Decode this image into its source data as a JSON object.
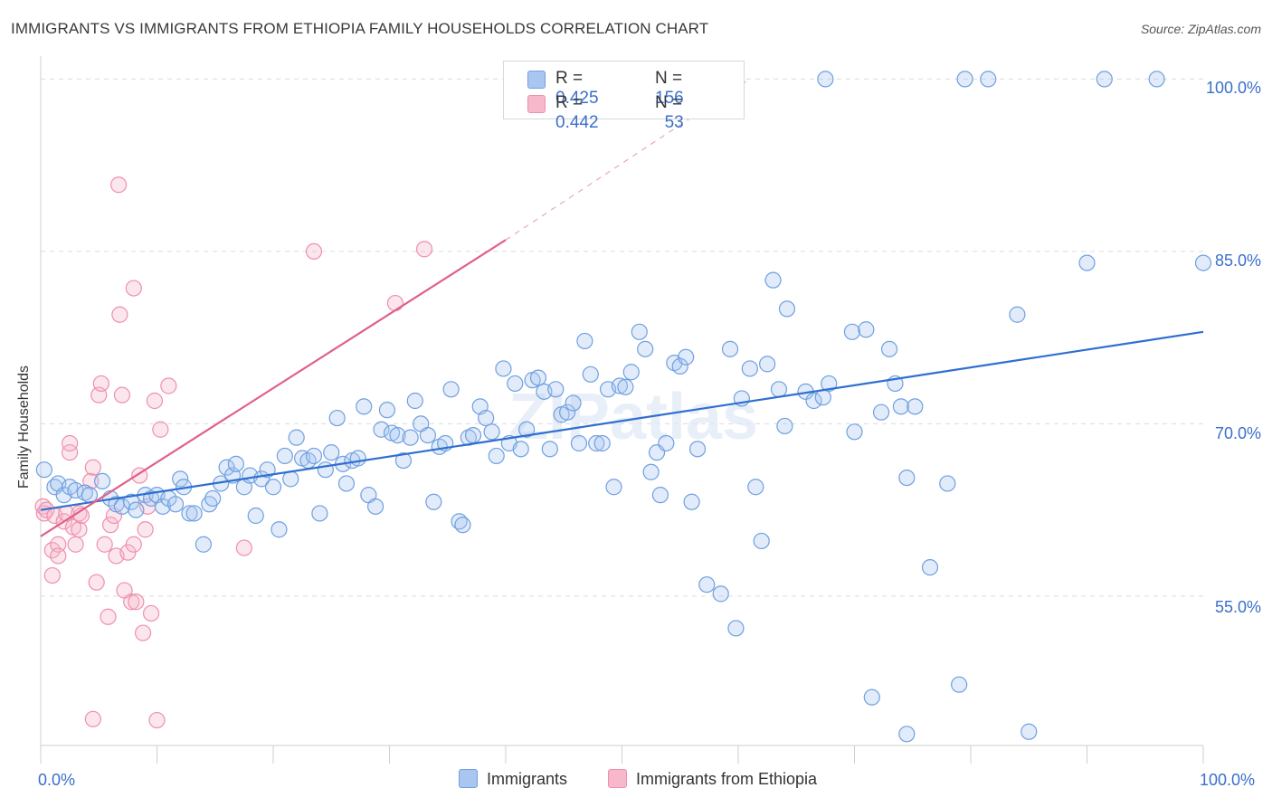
{
  "title": "IMMIGRANTS VS IMMIGRANTS FROM ETHIOPIA FAMILY HOUSEHOLDS CORRELATION CHART",
  "source": "Source: ZipAtlas.com",
  "watermark": "ZIPatlas",
  "legend": {
    "rows": [
      {
        "r_label": "R = ",
        "r_value": "0.425",
        "n_label": "N = ",
        "n_value": "156",
        "color": "#a9c6f0"
      },
      {
        "r_label": "R = ",
        "r_value": "0.442",
        "n_label": "N = ",
        "n_value": "53",
        "color": "#f7b8cb"
      }
    ]
  },
  "bottom_legend": [
    "Immigrants",
    "Immigrants from Ethiopia"
  ],
  "chart_data": {
    "type": "scatter",
    "title": "IMMIGRANTS VS IMMIGRANTS FROM ETHIOPIA FAMILY HOUSEHOLDS CORRELATION CHART",
    "xlabel": "",
    "ylabel": "Family Households",
    "xlim": [
      0,
      100
    ],
    "ylim": [
      42,
      102
    ],
    "x_tick_labels": [
      "0.0%",
      "100.0%"
    ],
    "y_ticks": [
      55,
      70,
      85,
      100
    ],
    "y_tick_labels": [
      "55.0%",
      "70.0%",
      "85.0%",
      "100.0%"
    ],
    "grid": true,
    "legend_placement": "top-center",
    "series": [
      {
        "name": "Immigrants",
        "color": "#6fa0e0",
        "fill": "#a9c6f0",
        "trend": {
          "x": [
            0,
            100
          ],
          "y": [
            62.5,
            78.0
          ]
        },
        "points": [
          [
            0.3,
            66
          ],
          [
            1.2,
            64.5
          ],
          [
            1.5,
            64.8
          ],
          [
            2,
            63.8
          ],
          [
            2.5,
            64.5
          ],
          [
            3,
            64.2
          ],
          [
            3.8,
            64
          ],
          [
            4.2,
            63.8
          ],
          [
            5.3,
            65
          ],
          [
            6,
            63.5
          ],
          [
            6.5,
            63
          ],
          [
            7,
            62.8
          ],
          [
            7.8,
            63.2
          ],
          [
            8.2,
            62.5
          ],
          [
            9,
            63.8
          ],
          [
            9.5,
            63.5
          ],
          [
            10,
            63.8
          ],
          [
            10.5,
            62.8
          ],
          [
            11,
            63.5
          ],
          [
            11.6,
            63
          ],
          [
            12,
            65.2
          ],
          [
            12.3,
            64.5
          ],
          [
            12.8,
            62.2
          ],
          [
            13.2,
            62.2
          ],
          [
            14,
            59.5
          ],
          [
            14.5,
            63
          ],
          [
            14.8,
            63.5
          ],
          [
            15.5,
            64.8
          ],
          [
            16,
            66.2
          ],
          [
            16.5,
            65.5
          ],
          [
            16.8,
            66.5
          ],
          [
            17.5,
            64.5
          ],
          [
            18,
            65.5
          ],
          [
            18.5,
            62
          ],
          [
            19,
            65.2
          ],
          [
            19.5,
            66
          ],
          [
            20,
            64.5
          ],
          [
            20.5,
            60.8
          ],
          [
            21,
            67.2
          ],
          [
            21.5,
            65.2
          ],
          [
            22,
            68.8
          ],
          [
            22.5,
            67
          ],
          [
            23,
            66.8
          ],
          [
            23.5,
            67.2
          ],
          [
            24,
            62.2
          ],
          [
            24.5,
            66
          ],
          [
            25,
            67.5
          ],
          [
            25.5,
            70.5
          ],
          [
            26,
            66.5
          ],
          [
            26.3,
            64.8
          ],
          [
            26.8,
            66.8
          ],
          [
            27.3,
            67
          ],
          [
            27.8,
            71.5
          ],
          [
            28.2,
            63.8
          ],
          [
            28.8,
            62.8
          ],
          [
            29.3,
            69.5
          ],
          [
            29.8,
            71.2
          ],
          [
            30.2,
            69.2
          ],
          [
            30.7,
            69
          ],
          [
            31.2,
            66.8
          ],
          [
            31.8,
            68.8
          ],
          [
            32.2,
            72
          ],
          [
            32.7,
            70
          ],
          [
            33.3,
            69
          ],
          [
            33.8,
            63.2
          ],
          [
            34.3,
            68
          ],
          [
            34.8,
            68.3
          ],
          [
            35.3,
            73
          ],
          [
            36,
            61.5
          ],
          [
            36.3,
            61.2
          ],
          [
            36.8,
            68.8
          ],
          [
            37.2,
            69
          ],
          [
            37.8,
            71.5
          ],
          [
            38.3,
            70.5
          ],
          [
            38.8,
            69.3
          ],
          [
            39.2,
            67.2
          ],
          [
            39.8,
            74.8
          ],
          [
            40.3,
            68.3
          ],
          [
            40.8,
            73.5
          ],
          [
            41.3,
            67.8
          ],
          [
            41.8,
            69.5
          ],
          [
            42.3,
            73.8
          ],
          [
            42.8,
            74
          ],
          [
            43.3,
            72.8
          ],
          [
            43.8,
            67.8
          ],
          [
            44.3,
            73
          ],
          [
            44.8,
            70.8
          ],
          [
            45.3,
            71
          ],
          [
            45.8,
            71.8
          ],
          [
            46.3,
            68.3
          ],
          [
            46.8,
            77.2
          ],
          [
            47.3,
            74.3
          ],
          [
            47.8,
            68.3
          ],
          [
            48.3,
            68.3
          ],
          [
            48.8,
            73
          ],
          [
            49.3,
            64.5
          ],
          [
            49.8,
            73.3
          ],
          [
            50.3,
            73.2
          ],
          [
            50.8,
            74.5
          ],
          [
            51.5,
            78
          ],
          [
            52,
            76.5
          ],
          [
            52.5,
            65.8
          ],
          [
            53,
            67.5
          ],
          [
            53.3,
            63.8
          ],
          [
            53.8,
            68.3
          ],
          [
            54.5,
            75.3
          ],
          [
            55,
            75
          ],
          [
            55.5,
            75.8
          ],
          [
            56,
            63.2
          ],
          [
            56.5,
            67.8
          ],
          [
            57.3,
            56
          ],
          [
            58.5,
            55.2
          ],
          [
            59.3,
            76.5
          ],
          [
            59.8,
            52.2
          ],
          [
            60.3,
            72.2
          ],
          [
            61,
            74.8
          ],
          [
            61.5,
            64.5
          ],
          [
            62,
            59.8
          ],
          [
            62.5,
            75.2
          ],
          [
            63,
            82.5
          ],
          [
            63.5,
            73
          ],
          [
            64,
            69.8
          ],
          [
            64.2,
            80
          ],
          [
            65.8,
            72.8
          ],
          [
            66.5,
            72
          ],
          [
            67.3,
            72.3
          ],
          [
            67.8,
            73.5
          ],
          [
            69.8,
            78
          ],
          [
            70,
            69.3
          ],
          [
            71,
            78.2
          ],
          [
            71.5,
            46.2
          ],
          [
            72.3,
            71
          ],
          [
            73,
            76.5
          ],
          [
            73.5,
            73.5
          ],
          [
            74,
            71.5
          ],
          [
            74.5,
            43
          ],
          [
            74.5,
            65.3
          ],
          [
            75.2,
            71.5
          ],
          [
            76.5,
            57.5
          ],
          [
            78,
            64.8
          ],
          [
            79,
            47.3
          ],
          [
            84,
            79.5
          ],
          [
            85,
            43.2
          ],
          [
            90,
            84
          ],
          [
            67.5,
            100
          ],
          [
            79.5,
            100
          ],
          [
            81.5,
            100
          ],
          [
            91.5,
            100
          ],
          [
            96,
            100
          ],
          [
            100,
            84
          ]
        ]
      },
      {
        "name": "Immigrants from Ethiopia",
        "color": "#ef8fad",
        "fill": "#f7b8cb",
        "trend": {
          "x": [
            0,
            40
          ],
          "y": [
            60.2,
            86
          ],
          "dashed_to": [
            61,
            100
          ]
        },
        "points": [
          [
            0.2,
            62.8
          ],
          [
            0.3,
            62.2
          ],
          [
            0.5,
            62.5
          ],
          [
            1,
            56.8
          ],
          [
            1,
            59
          ],
          [
            1.2,
            62
          ],
          [
            1.5,
            59.5
          ],
          [
            1.5,
            58.5
          ],
          [
            2,
            61.5
          ],
          [
            2.2,
            62.2
          ],
          [
            2.5,
            67.5
          ],
          [
            2.5,
            68.3
          ],
          [
            2.8,
            61
          ],
          [
            3,
            59.5
          ],
          [
            3.3,
            60.8
          ],
          [
            3.3,
            62.2
          ],
          [
            3.5,
            62
          ],
          [
            4.3,
            65
          ],
          [
            4.5,
            66.2
          ],
          [
            4.8,
            56.2
          ],
          [
            4.5,
            44.3
          ],
          [
            5,
            72.5
          ],
          [
            5.2,
            73.5
          ],
          [
            5.5,
            59.5
          ],
          [
            5.8,
            53.2
          ],
          [
            6,
            61.2
          ],
          [
            6.3,
            62
          ],
          [
            6.5,
            58.5
          ],
          [
            6.7,
            90.8
          ],
          [
            6.8,
            79.5
          ],
          [
            7,
            72.5
          ],
          [
            7.2,
            55.5
          ],
          [
            7.5,
            58.8
          ],
          [
            7.8,
            54.5
          ],
          [
            8,
            81.8
          ],
          [
            8,
            59.5
          ],
          [
            8.2,
            54.5
          ],
          [
            8.5,
            65.5
          ],
          [
            8.8,
            51.8
          ],
          [
            9,
            60.8
          ],
          [
            9.2,
            62.8
          ],
          [
            9.5,
            53.5
          ],
          [
            9.8,
            72
          ],
          [
            10,
            44.2
          ],
          [
            10.3,
            69.5
          ],
          [
            11,
            73.3
          ],
          [
            17.5,
            59.2
          ],
          [
            23.5,
            85
          ],
          [
            30.5,
            80.5
          ],
          [
            33,
            85.2
          ]
        ]
      }
    ]
  }
}
